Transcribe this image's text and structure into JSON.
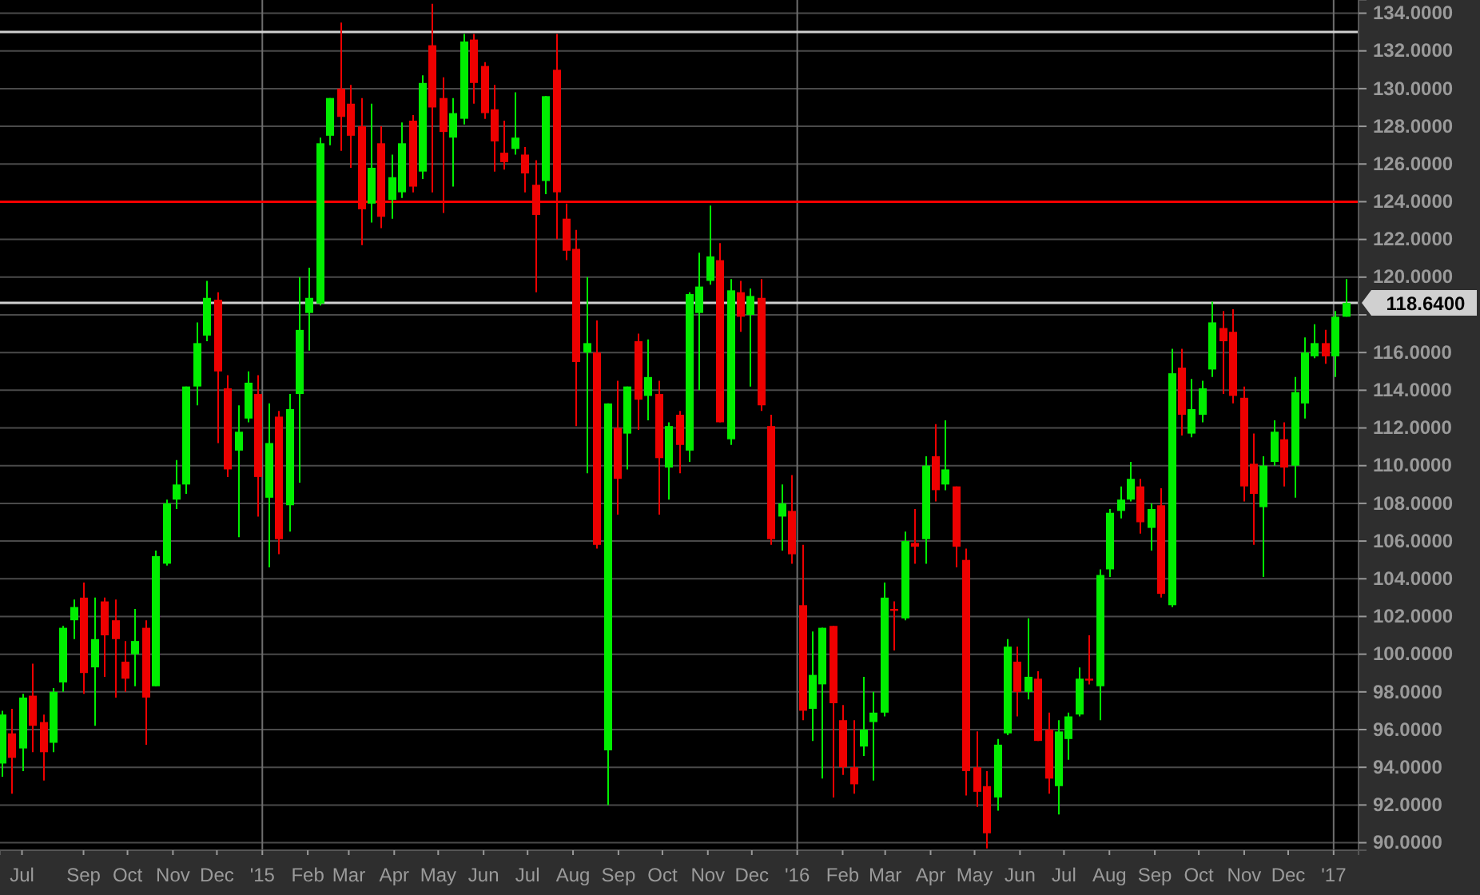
{
  "chart_data": {
    "type": "candlestick",
    "x": [
      "2014-07-07",
      "2014-07-14",
      "2014-07-21",
      "2014-07-28",
      "2014-08-04",
      "2014-08-11",
      "2014-08-18",
      "2014-08-25",
      "2014-09-01",
      "2014-09-08",
      "2014-09-15",
      "2014-09-22",
      "2014-09-29",
      "2014-10-06",
      "2014-10-13",
      "2014-10-20",
      "2014-10-27",
      "2014-11-03",
      "2014-11-10",
      "2014-11-17",
      "2014-11-24",
      "2014-12-01",
      "2014-12-08",
      "2014-12-15",
      "2014-12-22",
      "2014-12-29",
      "2015-01-05",
      "2015-01-12",
      "2015-01-19",
      "2015-01-26",
      "2015-02-02",
      "2015-02-09",
      "2015-02-16",
      "2015-02-23",
      "2015-03-02",
      "2015-03-09",
      "2015-03-16",
      "2015-03-23",
      "2015-03-30",
      "2015-04-06",
      "2015-04-13",
      "2015-04-20",
      "2015-04-27",
      "2015-05-04",
      "2015-05-11",
      "2015-05-18",
      "2015-05-25",
      "2015-06-01",
      "2015-06-08",
      "2015-06-15",
      "2015-06-22",
      "2015-06-29",
      "2015-07-06",
      "2015-07-13",
      "2015-07-20",
      "2015-07-27",
      "2015-08-03",
      "2015-08-10",
      "2015-08-17",
      "2015-08-24",
      "2015-08-31",
      "2015-09-07",
      "2015-09-14",
      "2015-09-21",
      "2015-09-28",
      "2015-10-05",
      "2015-10-12",
      "2015-10-19",
      "2015-10-26",
      "2015-11-02",
      "2015-11-09",
      "2015-11-16",
      "2015-11-23",
      "2015-11-30",
      "2015-12-07",
      "2015-12-14",
      "2015-12-21",
      "2015-12-28",
      "2016-01-04",
      "2016-01-11",
      "2016-01-18",
      "2016-01-25",
      "2016-02-01",
      "2016-02-08",
      "2016-02-15",
      "2016-02-22",
      "2016-02-29",
      "2016-03-07",
      "2016-03-14",
      "2016-03-21",
      "2016-03-28",
      "2016-04-04",
      "2016-04-11",
      "2016-04-18",
      "2016-04-25",
      "2016-05-02",
      "2016-05-09",
      "2016-05-16",
      "2016-05-23",
      "2016-05-30",
      "2016-06-06",
      "2016-06-13",
      "2016-06-20",
      "2016-06-27",
      "2016-07-04",
      "2016-07-11",
      "2016-07-18",
      "2016-07-25",
      "2016-08-01",
      "2016-08-08",
      "2016-08-15",
      "2016-08-22",
      "2016-08-29",
      "2016-09-05",
      "2016-09-12",
      "2016-09-19",
      "2016-09-26",
      "2016-10-03",
      "2016-10-10",
      "2016-10-17",
      "2016-10-24",
      "2016-10-31",
      "2016-11-07",
      "2016-11-14",
      "2016-11-21",
      "2016-11-28",
      "2016-12-05",
      "2016-12-12",
      "2016-12-19",
      "2016-12-26",
      "2017-01-02",
      "2017-01-09"
    ],
    "ohlc": [
      [
        94.2,
        97.0,
        93.5,
        96.8
      ],
      [
        95.8,
        97.1,
        92.6,
        94.5
      ],
      [
        95.0,
        97.9,
        93.8,
        97.7
      ],
      [
        97.8,
        99.5,
        94.8,
        96.2
      ],
      [
        96.4,
        96.8,
        93.3,
        94.8
      ],
      [
        95.3,
        98.2,
        94.8,
        98.0
      ],
      [
        98.5,
        101.5,
        98.0,
        101.4
      ],
      [
        101.8,
        102.9,
        100.8,
        102.5
      ],
      [
        103.0,
        103.8,
        97.9,
        99.0
      ],
      [
        99.3,
        103.0,
        96.2,
        100.8
      ],
      [
        102.8,
        103.0,
        98.8,
        101.0
      ],
      [
        101.8,
        102.9,
        97.7,
        100.8
      ],
      [
        99.6,
        100.7,
        98.0,
        98.7
      ],
      [
        100.0,
        102.4,
        98.3,
        100.7
      ],
      [
        101.4,
        101.8,
        95.2,
        97.7
      ],
      [
        98.3,
        105.5,
        98.3,
        105.2
      ],
      [
        104.8,
        108.2,
        104.7,
        108.0
      ],
      [
        108.2,
        110.3,
        107.7,
        109.0
      ],
      [
        109.0,
        114.2,
        108.5,
        114.2
      ],
      [
        114.2,
        117.6,
        113.2,
        116.5
      ],
      [
        116.9,
        119.8,
        116.6,
        118.9
      ],
      [
        118.8,
        119.2,
        111.2,
        115.0
      ],
      [
        114.1,
        114.8,
        109.4,
        109.8
      ],
      [
        110.8,
        113.2,
        106.2,
        111.8
      ],
      [
        112.5,
        115.0,
        112.3,
        114.4
      ],
      [
        113.8,
        114.8,
        107.3,
        109.4
      ],
      [
        108.3,
        113.3,
        104.6,
        111.2
      ],
      [
        112.6,
        112.9,
        105.3,
        106.1
      ],
      [
        107.9,
        113.8,
        106.5,
        113.0
      ],
      [
        113.8,
        120.0,
        109.1,
        117.2
      ],
      [
        118.1,
        120.5,
        116.1,
        118.9
      ],
      [
        118.6,
        127.4,
        118.5,
        127.1
      ],
      [
        127.5,
        129.5,
        127.0,
        129.5
      ],
      [
        130.0,
        133.5,
        126.7,
        128.5
      ],
      [
        129.2,
        130.2,
        125.8,
        127.5
      ],
      [
        128.0,
        129.5,
        121.7,
        123.6
      ],
      [
        123.9,
        129.2,
        122.9,
        125.8
      ],
      [
        127.1,
        128.0,
        122.6,
        123.2
      ],
      [
        124.1,
        126.5,
        123.1,
        125.3
      ],
      [
        124.5,
        128.2,
        124.2,
        127.1
      ],
      [
        128.3,
        128.6,
        124.5,
        124.8
      ],
      [
        125.6,
        130.7,
        125.2,
        130.3
      ],
      [
        132.3,
        134.5,
        124.5,
        129.0
      ],
      [
        129.5,
        130.6,
        123.4,
        127.7
      ],
      [
        127.4,
        129.5,
        124.8,
        128.7
      ],
      [
        128.4,
        132.9,
        128.1,
        132.5
      ],
      [
        132.6,
        132.9,
        129.2,
        130.3
      ],
      [
        131.2,
        131.4,
        128.4,
        128.7
      ],
      [
        128.9,
        130.2,
        125.6,
        127.2
      ],
      [
        126.6,
        128.3,
        125.7,
        126.1
      ],
      [
        126.8,
        129.8,
        126.5,
        127.4
      ],
      [
        126.5,
        126.9,
        124.5,
        125.5
      ],
      [
        124.9,
        126.2,
        119.2,
        123.3
      ],
      [
        125.1,
        129.6,
        124.4,
        129.6
      ],
      [
        131.0,
        132.9,
        122.0,
        124.5
      ],
      [
        123.1,
        123.9,
        120.9,
        121.4
      ],
      [
        121.5,
        122.5,
        112.1,
        115.5
      ],
      [
        116.0,
        120.0,
        109.6,
        116.5
      ],
      [
        116.0,
        117.7,
        105.6,
        105.8
      ],
      [
        94.9,
        113.3,
        92.0,
        113.3
      ],
      [
        112.0,
        114.5,
        107.4,
        109.3
      ],
      [
        111.7,
        114.2,
        109.8,
        114.2
      ],
      [
        116.6,
        117.0,
        111.9,
        113.5
      ],
      [
        113.7,
        116.7,
        112.4,
        114.7
      ],
      [
        113.8,
        114.5,
        107.4,
        110.4
      ],
      [
        109.9,
        112.3,
        108.2,
        112.1
      ],
      [
        112.7,
        112.9,
        109.6,
        111.1
      ],
      [
        110.8,
        119.2,
        110.2,
        119.1
      ],
      [
        118.1,
        121.3,
        114.0,
        119.5
      ],
      [
        119.8,
        123.8,
        119.6,
        121.1
      ],
      [
        120.9,
        121.8,
        112.3,
        112.3
      ],
      [
        111.4,
        119.9,
        111.1,
        119.3
      ],
      [
        119.2,
        119.8,
        117.1,
        117.9
      ],
      [
        118.0,
        119.4,
        114.2,
        119.0
      ],
      [
        118.9,
        119.9,
        112.9,
        113.2
      ],
      [
        112.1,
        112.7,
        105.8,
        106.1
      ],
      [
        107.3,
        109.0,
        105.5,
        108.0
      ],
      [
        107.6,
        109.5,
        104.8,
        105.3
      ],
      [
        102.6,
        105.8,
        96.5,
        97.0
      ],
      [
        97.1,
        101.2,
        95.4,
        98.9
      ],
      [
        98.4,
        101.4,
        93.4,
        101.4
      ],
      [
        101.5,
        101.5,
        92.4,
        97.4
      ],
      [
        96.5,
        97.3,
        93.6,
        94.0
      ],
      [
        94.0,
        96.5,
        92.6,
        93.1
      ],
      [
        95.1,
        98.8,
        94.6,
        96.0
      ],
      [
        96.4,
        98.0,
        93.3,
        96.9
      ],
      [
        96.9,
        103.8,
        96.7,
        103.0
      ],
      [
        102.4,
        102.8,
        100.2,
        102.3
      ],
      [
        101.9,
        106.5,
        101.8,
        106.0
      ],
      [
        105.9,
        107.7,
        104.8,
        105.7
      ],
      [
        106.1,
        110.5,
        104.8,
        110.0
      ],
      [
        110.5,
        112.2,
        108.1,
        108.7
      ],
      [
        109.0,
        112.4,
        108.7,
        109.8
      ],
      [
        108.9,
        108.9,
        104.6,
        105.7
      ],
      [
        105.0,
        105.6,
        92.5,
        93.8
      ],
      [
        94.0,
        95.9,
        91.9,
        92.7
      ],
      [
        93.0,
        93.8,
        89.7,
        90.5
      ],
      [
        92.4,
        95.5,
        91.7,
        95.2
      ],
      [
        95.8,
        100.8,
        95.7,
        100.4
      ],
      [
        99.6,
        100.4,
        96.7,
        98.0
      ],
      [
        98.0,
        101.9,
        97.6,
        98.8
      ],
      [
        98.7,
        99.1,
        95.4,
        95.4
      ],
      [
        96.0,
        96.9,
        92.6,
        93.4
      ],
      [
        93.0,
        96.5,
        91.5,
        95.9
      ],
      [
        95.5,
        96.9,
        94.4,
        96.7
      ],
      [
        96.8,
        99.3,
        96.7,
        98.7
      ],
      [
        98.7,
        101.0,
        98.4,
        98.6
      ],
      [
        98.3,
        104.5,
        96.5,
        104.2
      ],
      [
        104.5,
        107.7,
        104.1,
        107.5
      ],
      [
        107.6,
        108.9,
        107.2,
        108.2
      ],
      [
        108.2,
        110.2,
        108.1,
        109.3
      ],
      [
        108.9,
        109.3,
        106.4,
        107.0
      ],
      [
        106.7,
        108.0,
        105.5,
        107.7
      ],
      [
        107.9,
        108.8,
        103.0,
        103.2
      ],
      [
        102.6,
        116.2,
        102.5,
        114.9
      ],
      [
        115.2,
        116.2,
        111.6,
        112.7
      ],
      [
        111.7,
        114.6,
        111.5,
        113.0
      ],
      [
        112.7,
        114.5,
        112.3,
        114.1
      ],
      [
        115.1,
        118.7,
        114.7,
        117.6
      ],
      [
        117.3,
        118.2,
        113.8,
        116.6
      ],
      [
        117.1,
        118.3,
        113.3,
        113.7
      ],
      [
        113.6,
        114.2,
        108.1,
        108.9
      ],
      [
        110.1,
        111.7,
        105.8,
        108.5
      ],
      [
        107.8,
        110.5,
        104.1,
        110.0
      ],
      [
        110.2,
        112.4,
        110.0,
        111.8
      ],
      [
        111.4,
        112.3,
        108.9,
        109.9
      ],
      [
        110.0,
        114.7,
        108.3,
        113.9
      ],
      [
        113.3,
        116.8,
        112.5,
        116.0
      ],
      [
        115.8,
        117.5,
        115.7,
        116.5
      ],
      [
        116.5,
        117.2,
        115.4,
        115.8
      ],
      [
        115.8,
        118.2,
        114.7,
        117.9
      ],
      [
        117.9,
        119.9,
        117.9,
        118.64
      ]
    ],
    "colors": [
      "#00ee00",
      "#ee0000",
      "#00ee00",
      "#ee0000",
      "#ee0000",
      "#00ee00",
      "#00ee00",
      "#00ee00",
      "#ee0000",
      "#00ee00",
      "#ee0000",
      "#ee0000",
      "#ee0000",
      "#00ee00",
      "#ee0000",
      "#00ee00",
      "#00ee00",
      "#00ee00",
      "#00ee00",
      "#00ee00",
      "#00ee00",
      "#ee0000",
      "#ee0000",
      "#00ee00",
      "#00ee00",
      "#ee0000",
      "#00ee00",
      "#ee0000",
      "#00ee00",
      "#00ee00",
      "#00ee00",
      "#00ee00",
      "#00ee00",
      "#ee0000",
      "#ee0000",
      "#ee0000",
      "#00ee00",
      "#ee0000",
      "#00ee00",
      "#00ee00",
      "#ee0000",
      "#00ee00",
      "#ee0000",
      "#ee0000",
      "#00ee00",
      "#00ee00",
      "#ee0000",
      "#ee0000",
      "#ee0000",
      "#ee0000",
      "#00ee00",
      "#ee0000",
      "#ee0000",
      "#00ee00",
      "#ee0000",
      "#ee0000",
      "#ee0000",
      "#00ee00",
      "#ee0000",
      "#00ee00",
      "#ee0000",
      "#00ee00",
      "#ee0000",
      "#00ee00",
      "#ee0000",
      "#00ee00",
      "#ee0000",
      "#00ee00",
      "#00ee00",
      "#00ee00",
      "#ee0000",
      "#00ee00",
      "#ee0000",
      "#00ee00",
      "#ee0000",
      "#ee0000",
      "#00ee00",
      "#ee0000",
      "#ee0000",
      "#00ee00",
      "#00ee00",
      "#ee0000",
      "#ee0000",
      "#ee0000",
      "#00ee00",
      "#00ee00",
      "#00ee00",
      "#ee0000",
      "#00ee00",
      "#ee0000",
      "#00ee00",
      "#ee0000",
      "#00ee00",
      "#ee0000",
      "#ee0000",
      "#ee0000",
      "#ee0000",
      "#00ee00",
      "#00ee00",
      "#ee0000",
      "#00ee00",
      "#ee0000",
      "#ee0000",
      "#00ee00",
      "#00ee00",
      "#00ee00",
      "#ee0000",
      "#00ee00",
      "#00ee00",
      "#00ee00",
      "#00ee00",
      "#ee0000",
      "#00ee00",
      "#ee0000",
      "#00ee00",
      "#ee0000",
      "#00ee00",
      "#00ee00",
      "#00ee00",
      "#ee0000",
      "#ee0000",
      "#ee0000",
      "#ee0000",
      "#00ee00",
      "#00ee00",
      "#ee0000",
      "#00ee00",
      "#00ee00",
      "#00ee00",
      "#ee0000",
      "#00ee00",
      "#00ee00"
    ],
    "xlim": [
      "2014-07-06",
      "2017-01-18"
    ],
    "xticks": [
      {
        "value": "2014-07-21",
        "label": "Jul"
      },
      {
        "value": "2014-09-01",
        "label": "Sep"
      },
      {
        "value": "2014-10-01",
        "label": "Oct"
      },
      {
        "value": "2014-11-01",
        "label": "Nov"
      },
      {
        "value": "2014-12-01",
        "label": "Dec"
      },
      {
        "value": "2015-01-01",
        "label": "'15"
      },
      {
        "value": "2015-02-01",
        "label": "Feb"
      },
      {
        "value": "2015-03-01",
        "label": "Mar"
      },
      {
        "value": "2015-04-01",
        "label": "Apr"
      },
      {
        "value": "2015-05-01",
        "label": "May"
      },
      {
        "value": "2015-06-01",
        "label": "Jun"
      },
      {
        "value": "2015-07-01",
        "label": "Jul"
      },
      {
        "value": "2015-08-01",
        "label": "Aug"
      },
      {
        "value": "2015-09-01",
        "label": "Sep"
      },
      {
        "value": "2015-10-01",
        "label": "Oct"
      },
      {
        "value": "2015-11-01",
        "label": "Nov"
      },
      {
        "value": "2015-12-01",
        "label": "Dec"
      },
      {
        "value": "2016-01-01",
        "label": "'16"
      },
      {
        "value": "2016-02-01",
        "label": "Feb"
      },
      {
        "value": "2016-03-01",
        "label": "Mar"
      },
      {
        "value": "2016-04-01",
        "label": "Apr"
      },
      {
        "value": "2016-05-01",
        "label": "May"
      },
      {
        "value": "2016-06-01",
        "label": "Jun"
      },
      {
        "value": "2016-07-01",
        "label": "Jul"
      },
      {
        "value": "2016-08-01",
        "label": "Aug"
      },
      {
        "value": "2016-09-01",
        "label": "Sep"
      },
      {
        "value": "2016-10-01",
        "label": "Oct"
      },
      {
        "value": "2016-11-01",
        "label": "Nov"
      },
      {
        "value": "2016-12-01",
        "label": "Dec"
      },
      {
        "value": "2017-01-01",
        "label": "'17"
      }
    ],
    "ylim": [
      89.6,
      134.7
    ],
    "yticks": [
      {
        "value": 90,
        "label": "90.0000"
      },
      {
        "value": 92,
        "label": "92.0000"
      },
      {
        "value": 94,
        "label": "94.0000"
      },
      {
        "value": 96,
        "label": "96.0000"
      },
      {
        "value": 98,
        "label": "98.0000"
      },
      {
        "value": 100,
        "label": "100.0000"
      },
      {
        "value": 102,
        "label": "102.0000"
      },
      {
        "value": 104,
        "label": "104.0000"
      },
      {
        "value": 106,
        "label": "106.0000"
      },
      {
        "value": 108,
        "label": "108.0000"
      },
      {
        "value": 110,
        "label": "110.0000"
      },
      {
        "value": 112,
        "label": "112.0000"
      },
      {
        "value": 114,
        "label": "114.0000"
      },
      {
        "value": 116,
        "label": "116.0000"
      },
      {
        "value": 118,
        "label": null
      },
      {
        "value": 120,
        "label": "120.0000"
      },
      {
        "value": 122,
        "label": "122.0000"
      },
      {
        "value": 124,
        "label": "124.0000"
      },
      {
        "value": 126,
        "label": "126.0000"
      },
      {
        "value": 128,
        "label": "128.0000"
      },
      {
        "value": 130,
        "label": "130.0000"
      },
      {
        "value": 132,
        "label": "132.0000"
      },
      {
        "value": 134,
        "label": "134.0000"
      }
    ],
    "grid": "y",
    "ref_lines": [
      {
        "axis": "x",
        "value": "2015-01-01",
        "color": "#6e6e6e"
      },
      {
        "axis": "x",
        "value": "2016-01-01",
        "color": "#6e6e6e"
      },
      {
        "axis": "x",
        "value": "2017-01-01",
        "color": "#6e6e6e"
      },
      {
        "axis": "y",
        "value": 133.0,
        "color": "#d0d0d0"
      },
      {
        "axis": "y",
        "value": 124.0,
        "color": "#ff0000"
      },
      {
        "axis": "y",
        "value": 118.64,
        "label": "118.6400",
        "color": "#d0d0d0"
      }
    ]
  }
}
